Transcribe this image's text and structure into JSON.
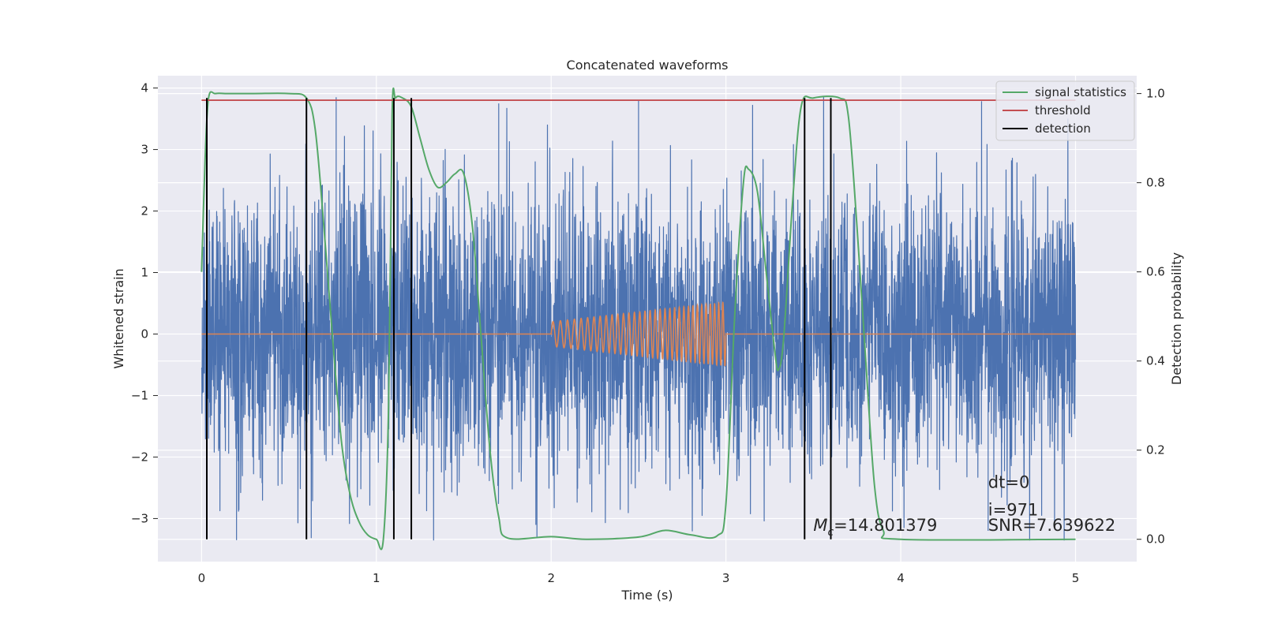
{
  "chart_data": {
    "type": "line",
    "title": "Concatenated waveforms",
    "xlabel": "Time (s)",
    "ylabel_left": "Whitened strain",
    "ylabel_right": "Detection probability",
    "xlim": [
      -0.25,
      5.35
    ],
    "ylim_left": [
      -3.7,
      4.2
    ],
    "ylim_right": [
      -0.05,
      1.04
    ],
    "x_ticks": [
      0,
      1,
      2,
      3,
      4,
      5
    ],
    "x_tick_labels": [
      "0",
      "1",
      "2",
      "3",
      "4",
      "5"
    ],
    "y_left_ticks": [
      -3,
      -2,
      -1,
      0,
      1,
      2,
      3,
      4
    ],
    "y_left_tick_labels": [
      "−3",
      "−2",
      "−1",
      "0",
      "1",
      "2",
      "3",
      "4"
    ],
    "y_right_ticks": [
      0.0,
      0.2,
      0.4,
      0.6,
      0.8,
      1.0
    ],
    "y_right_tick_labels": [
      "0.0",
      "0.2",
      "0.4",
      "0.6",
      "0.8",
      "1.0"
    ],
    "grid": true,
    "legend_position": "top-right",
    "legend": [
      {
        "label": "signal statistics",
        "color": "#55a868"
      },
      {
        "label": "threshold",
        "color": "#c44e52"
      },
      {
        "label": "detection",
        "color": "#000000"
      }
    ],
    "colors": {
      "noise": "#4c72b0",
      "injected": "#dd8452",
      "statistic": "#55a868",
      "threshold": "#c44e52",
      "detection": "#000000",
      "plot_bg": "#eaeaf2",
      "grid": "#ffffff"
    },
    "series": [
      {
        "name": "Whitened strain",
        "axis": "left",
        "kind": "noise",
        "x_range": [
          0,
          5
        ],
        "y_range": [
          -3.35,
          3.85
        ],
        "approx_std": 1.1,
        "spike_points": [
          {
            "x": 0.2,
            "y": -3.35
          },
          {
            "x": 0.77,
            "y": 3.85
          },
          {
            "x": 1.7,
            "y": 3.75
          },
          {
            "x": 2.5,
            "y": 3.8
          },
          {
            "x": 3.45,
            "y": -3.25
          },
          {
            "x": 4.5,
            "y": -3.2
          }
        ]
      },
      {
        "name": "Injected waveform",
        "axis": "left",
        "kind": "chirp",
        "x_range": [
          0,
          5
        ],
        "chirp_start": 2.0,
        "chirp_end": 3.0,
        "amp_start": 0.2,
        "amp_end": 0.52,
        "cycles": 33
      },
      {
        "name": "signal statistics",
        "axis": "right",
        "x": [
          0.0,
          0.02,
          0.04,
          0.08,
          0.15,
          0.3,
          0.5,
          0.6,
          0.65,
          0.7,
          0.75,
          0.8,
          0.85,
          0.9,
          0.95,
          1.0,
          1.04,
          1.07,
          1.09,
          1.11,
          1.15,
          1.2,
          1.25,
          1.3,
          1.35,
          1.4,
          1.45,
          1.5,
          1.55,
          1.6,
          1.65,
          1.7,
          1.75,
          2.0,
          2.2,
          2.5,
          2.65,
          2.8,
          2.95,
          3.0,
          3.05,
          3.1,
          3.13,
          3.18,
          3.23,
          3.28,
          3.3,
          3.33,
          3.38,
          3.43,
          3.5,
          3.65,
          3.7,
          3.75,
          3.8,
          3.85,
          3.9,
          4.0,
          5.0
        ],
        "y": [
          0.6,
          0.85,
          0.99,
          1.0,
          1.0,
          1.0,
          1.0,
          0.99,
          0.92,
          0.7,
          0.45,
          0.22,
          0.1,
          0.04,
          0.01,
          0.0,
          0.0,
          0.3,
          0.95,
          0.99,
          0.99,
          0.97,
          0.9,
          0.83,
          0.79,
          0.8,
          0.82,
          0.82,
          0.7,
          0.45,
          0.2,
          0.05,
          0.003,
          0.006,
          0.0,
          0.005,
          0.02,
          0.01,
          0.008,
          0.08,
          0.5,
          0.8,
          0.83,
          0.78,
          0.6,
          0.42,
          0.38,
          0.45,
          0.75,
          0.97,
          0.99,
          0.99,
          0.95,
          0.7,
          0.4,
          0.12,
          0.02,
          0.0,
          0.0
        ]
      },
      {
        "name": "threshold",
        "axis": "right",
        "x": [
          0,
          5
        ],
        "y": [
          0.985,
          0.985
        ]
      }
    ],
    "detections_x": [
      0.03,
      0.6,
      1.1,
      1.2,
      3.45,
      3.6
    ],
    "detection_y_range": [
      0.0,
      0.99
    ],
    "annotations": [
      {
        "id": "mc",
        "x": 3.5,
        "y_left": -3.2,
        "prefix": "M",
        "subscript": "c",
        "value": "=14.801379"
      },
      {
        "id": "dt",
        "x": 4.5,
        "y_left": -2.5,
        "text": "dt=0"
      },
      {
        "id": "i",
        "x": 4.5,
        "y_left": -2.95,
        "text": "i=971"
      },
      {
        "id": "snr",
        "x": 4.5,
        "y_left": -3.2,
        "text": "SNR=7.639622"
      }
    ]
  }
}
